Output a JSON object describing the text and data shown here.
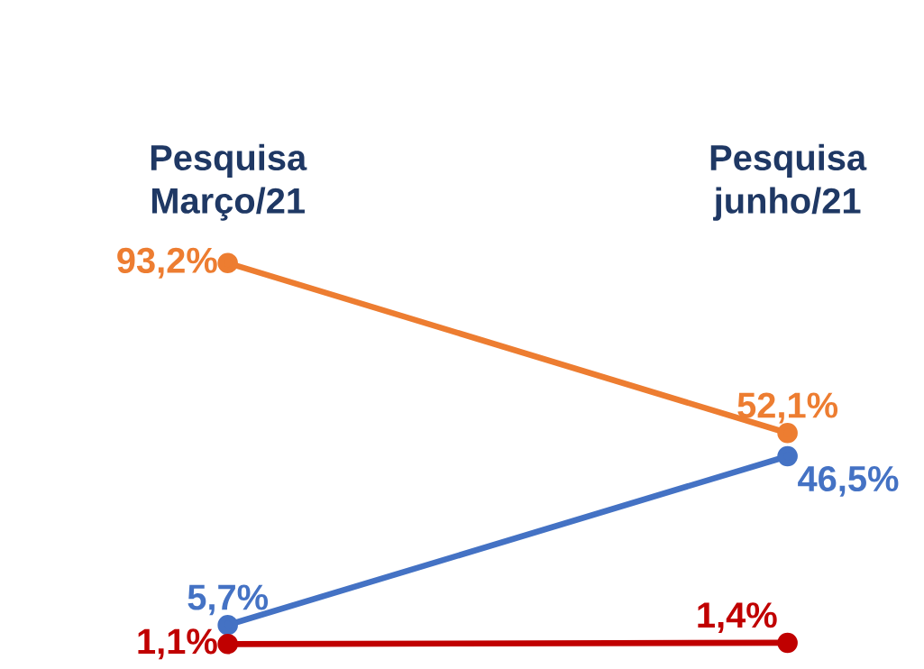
{
  "chart_data": {
    "type": "line",
    "categories": [
      "Pesquisa Março/21",
      "Pesquisa junho/21"
    ],
    "marker": "circle",
    "series": [
      {
        "color": "#ed7d31",
        "values": [
          93.2,
          52.1
        ],
        "value_labels": [
          "93,2%",
          "52,1%"
        ]
      },
      {
        "color": "#4472c4",
        "values": [
          5.7,
          46.5
        ],
        "value_labels": [
          "5,7%",
          "46,5%"
        ]
      },
      {
        "color": "#c00000",
        "values": [
          1.1,
          1.4
        ],
        "value_labels": [
          "1,1%",
          "1,4%"
        ]
      }
    ]
  }
}
